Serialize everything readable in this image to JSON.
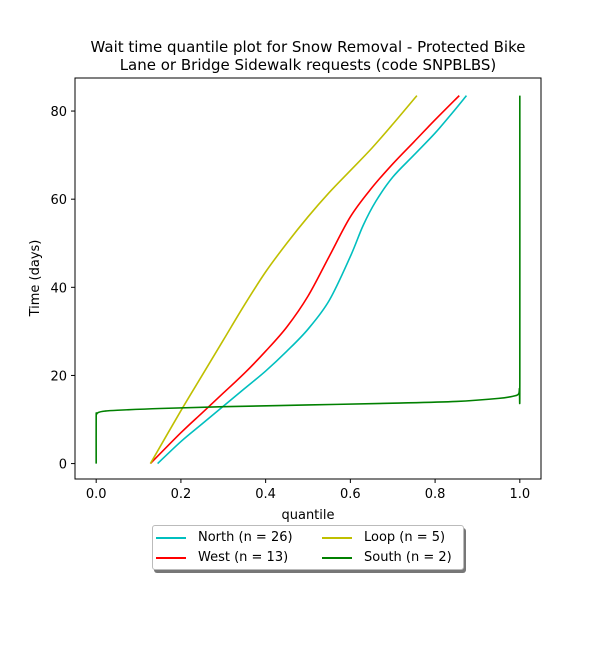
{
  "chart_data": {
    "type": "line",
    "title": "Wait time quantile plot for Snow Removal - Protected Bike\nLane or Bridge Sidewalk  requests (code SNPBLBS)",
    "title_lines": [
      "Wait time quantile plot for Snow Removal - Protected Bike",
      "Lane or Bridge Sidewalk  requests (code SNPBLBS)"
    ],
    "xlabel": "quantile",
    "ylabel": "Time (days)",
    "xlim": [
      -0.05,
      1.05
    ],
    "ylim": [
      -3.5,
      87.5
    ],
    "x_ticks": [
      0.0,
      0.2,
      0.4,
      0.6,
      0.8,
      1.0
    ],
    "x_tick_labels": [
      "0.0",
      "0.2",
      "0.4",
      "0.6",
      "0.8",
      "1.0"
    ],
    "y_ticks": [
      0,
      20,
      40,
      60,
      80
    ],
    "y_tick_labels": [
      "0",
      "20",
      "40",
      "60",
      "80"
    ],
    "grid": false,
    "legend_placement": "below",
    "legend_columns": 2,
    "series": [
      {
        "name": "North (n = 26)",
        "color": "#00bfbf",
        "x": [
          0.145,
          0.2,
          0.25,
          0.3,
          0.35,
          0.4,
          0.45,
          0.5,
          0.55,
          0.6,
          0.63,
          0.66,
          0.7,
          0.75,
          0.8,
          0.84,
          0.874
        ],
        "y": [
          0,
          5,
          9,
          13,
          17,
          21,
          25.5,
          30.5,
          37,
          47,
          54,
          59.5,
          65,
          70,
          75,
          79.5,
          83.5
        ]
      },
      {
        "name": "West (n = 13)",
        "color": "#ff0000",
        "x": [
          0.128,
          0.2,
          0.25,
          0.3,
          0.35,
          0.4,
          0.45,
          0.5,
          0.55,
          0.6,
          0.65,
          0.7,
          0.75,
          0.8,
          0.857
        ],
        "y": [
          0,
          7,
          11.5,
          16,
          20.5,
          25.5,
          31,
          38,
          47,
          56,
          62.5,
          68,
          73,
          78,
          83.5
        ]
      },
      {
        "name": "Loop (n = 5)",
        "color": "#bfbf00",
        "x": [
          0.128,
          0.2,
          0.25,
          0.3,
          0.35,
          0.4,
          0.45,
          0.5,
          0.55,
          0.6,
          0.65,
          0.7,
          0.757
        ],
        "y": [
          0,
          12,
          20,
          28,
          36,
          43.5,
          50,
          56,
          61.5,
          66.5,
          71.5,
          77,
          83.5
        ]
      },
      {
        "name": "South (n = 2)",
        "color": "#008000",
        "x": [
          0.0,
          0.0,
          0.001,
          0.005,
          0.02,
          0.05,
          0.15,
          0.3,
          0.5,
          0.7,
          0.85,
          0.95,
          0.985,
          0.997,
          0.999,
          1.0,
          1.0
        ],
        "y": [
          0,
          10.5,
          11.2,
          11.6,
          11.9,
          12.1,
          12.5,
          12.9,
          13.3,
          13.7,
          14.1,
          14.8,
          15.3,
          15.8,
          17,
          19,
          83.5
        ]
      }
    ]
  }
}
